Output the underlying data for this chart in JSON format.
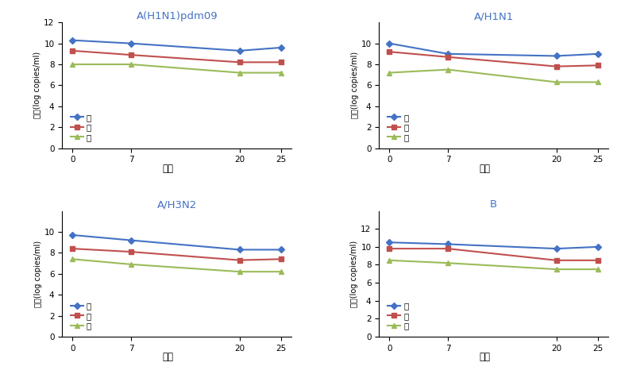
{
  "subplots": [
    {
      "title": "A(H1N1)pdm09",
      "x": [
        0,
        7,
        20,
        25
      ],
      "high": [
        10.3,
        10.0,
        9.3,
        9.6
      ],
      "mid": [
        9.3,
        8.9,
        8.2,
        8.2
      ],
      "low": [
        8.0,
        8.0,
        7.2,
        7.2
      ],
      "ylim": [
        0,
        12
      ],
      "yticks": [
        0,
        2,
        4,
        6,
        8,
        10,
        12
      ],
      "legend_show": true,
      "legend_labels": [
        "고",
        "중",
        "저"
      ],
      "has_low": true
    },
    {
      "title": "A/H1N1",
      "x": [
        0,
        7,
        20,
        25
      ],
      "high": [
        10.0,
        9.0,
        8.8,
        9.0
      ],
      "mid": [
        9.2,
        8.7,
        7.8,
        7.9
      ],
      "low": [
        7.2,
        7.5,
        6.3,
        6.3
      ],
      "ylim": [
        0,
        12
      ],
      "yticks": [
        0,
        2,
        4,
        6,
        8,
        10
      ],
      "legend_show": true,
      "legend_labels": [
        "고",
        "중",
        "저"
      ],
      "has_low": true
    },
    {
      "title": "A/H3N2",
      "x": [
        0,
        7,
        20,
        25
      ],
      "high": [
        9.7,
        9.2,
        8.3,
        8.3
      ],
      "mid": [
        8.4,
        8.1,
        7.3,
        7.4
      ],
      "low": [
        7.4,
        6.9,
        6.2,
        6.2
      ],
      "ylim": [
        0,
        12
      ],
      "yticks": [
        0,
        2,
        4,
        6,
        8,
        10
      ],
      "legend_show": true,
      "legend_labels": [
        "고",
        "중",
        "저"
      ],
      "has_low": true
    },
    {
      "title": "B",
      "x": [
        0,
        7,
        20,
        25
      ],
      "high": [
        10.5,
        10.3,
        9.8,
        10.0
      ],
      "mid": [
        9.8,
        9.8,
        8.5,
        8.5
      ],
      "low": [
        8.5,
        8.2,
        7.5,
        7.5
      ],
      "ylim": [
        0,
        14
      ],
      "yticks": [
        0,
        2,
        4,
        6,
        8,
        10,
        12
      ],
      "legend_show": true,
      "legend_labels": [
        "고",
        "중",
        "저"
      ],
      "has_low": true
    }
  ],
  "xlabel": "개월",
  "ylabel": "농도(log copies/ml)",
  "high_color": "#4472c4",
  "mid_color": "#c0504d",
  "low_color": "#9bbb59",
  "title_color": "#4472c4",
  "marker_high": "D",
  "marker_mid": "s",
  "marker_low": "^",
  "linewidth": 1.5,
  "markersize": 4,
  "xticks": [
    0,
    7,
    20,
    25
  ]
}
